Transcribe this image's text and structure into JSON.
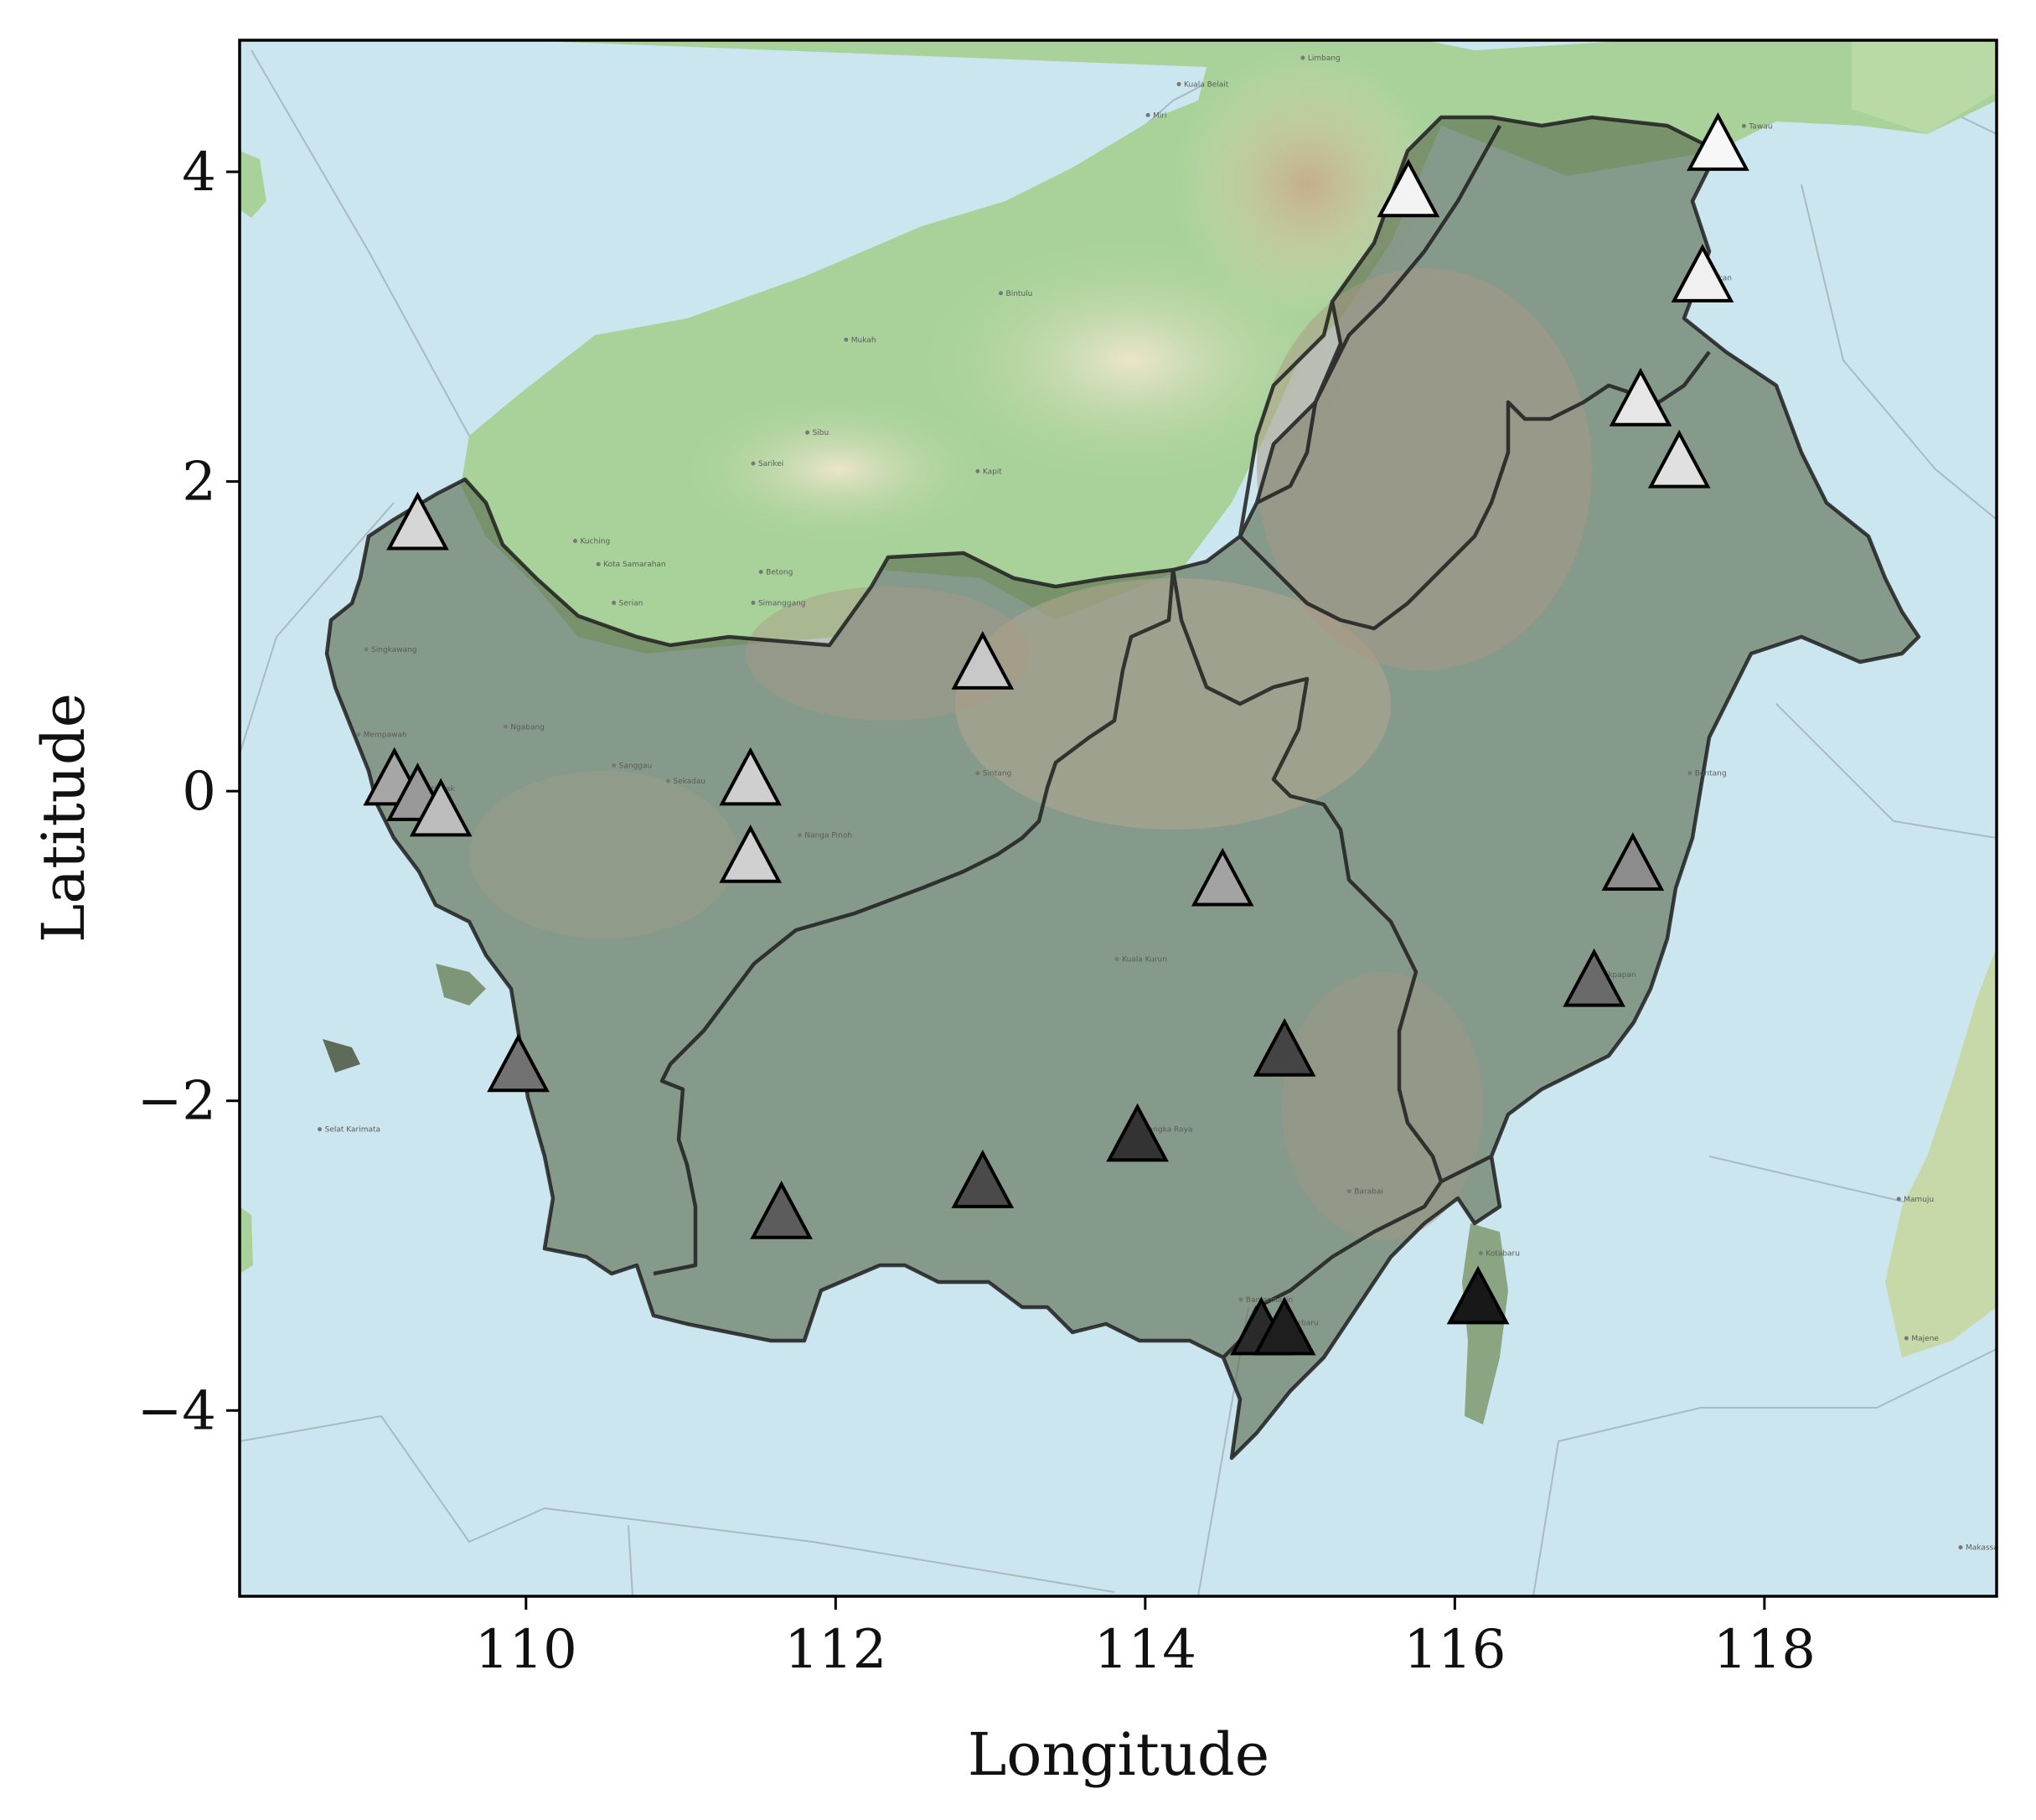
{
  "chart_data": {
    "type": "scatter",
    "title": "",
    "xlabel": "Longitude",
    "ylabel": "Latitude",
    "xlim": [
      108.15,
      119.5
    ],
    "ylim": [
      -5.2,
      4.85
    ],
    "xticks": [
      110,
      112,
      114,
      116,
      118
    ],
    "yticks": [
      4,
      2,
      0,
      -2,
      -4
    ],
    "xtick_labels": [
      "110",
      "112",
      "114",
      "116",
      "118"
    ],
    "ytick_labels": [
      "4",
      "2",
      "0",
      "−2",
      "−4"
    ],
    "grid": false,
    "legend": "none",
    "marker": "triangle",
    "colormap": "grayscale (shade varies by station)",
    "points": [
      {
        "lon": 115.7,
        "lat": 3.85,
        "color": "#f3f3f3"
      },
      {
        "lon": 117.7,
        "lat": 4.15,
        "color": "#f7f7f7"
      },
      {
        "lon": 117.6,
        "lat": 3.3,
        "color": "#f0f0f0"
      },
      {
        "lon": 117.2,
        "lat": 2.5,
        "color": "#e6e6e6"
      },
      {
        "lon": 117.45,
        "lat": 2.1,
        "color": "#e0e0e0"
      },
      {
        "lon": 109.3,
        "lat": 1.7,
        "color": "#d6d6d6"
      },
      {
        "lon": 112.95,
        "lat": 0.8,
        "color": "#c8c8c8"
      },
      {
        "lon": 111.45,
        "lat": 0.05,
        "color": "#cfcfcf"
      },
      {
        "lon": 111.45,
        "lat": -0.45,
        "color": "#d0d0d0"
      },
      {
        "lon": 109.15,
        "lat": 0.05,
        "color": "#a6a6a6"
      },
      {
        "lon": 109.3,
        "lat": -0.05,
        "color": "#999999"
      },
      {
        "lon": 109.45,
        "lat": -0.15,
        "color": "#bdbdbd"
      },
      {
        "lon": 114.5,
        "lat": -0.6,
        "color": "#a3a3a3"
      },
      {
        "lon": 117.15,
        "lat": -0.5,
        "color": "#8c8c8c"
      },
      {
        "lon": 116.9,
        "lat": -1.25,
        "color": "#6a6a6a"
      },
      {
        "lon": 109.95,
        "lat": -1.8,
        "color": "#727272"
      },
      {
        "lon": 114.9,
        "lat": -1.7,
        "color": "#444444"
      },
      {
        "lon": 113.95,
        "lat": -2.25,
        "color": "#333333"
      },
      {
        "lon": 112.95,
        "lat": -2.55,
        "color": "#4a4a4a"
      },
      {
        "lon": 111.65,
        "lat": -2.75,
        "color": "#5c5c5c"
      },
      {
        "lon": 114.75,
        "lat": -3.5,
        "color": "#2a2a2a"
      },
      {
        "lon": 114.9,
        "lat": -3.5,
        "color": "#1e1e1e"
      },
      {
        "lon": 116.15,
        "lat": -3.3,
        "color": "#181818"
      }
    ]
  },
  "map": {
    "colors": {
      "sea": "#cce6ef",
      "land": "#a9d29a",
      "highland": "#e6dcc0",
      "mountain": "#c9a98a",
      "region_overlay": "#5b6a4f",
      "border": "#1f1f1f",
      "frame": "#000000"
    },
    "place_labels": [
      "Limbang",
      "Kuala Belait",
      "Miri",
      "Tawau",
      "Tarakan",
      "Bintulu",
      "Mukah",
      "Sibu",
      "Sarikei",
      "Kapit",
      "Kuching",
      "Kota Samarahan",
      "Serian",
      "Betong",
      "Simanggang",
      "Singkawang",
      "Mempawah",
      "Pontianak",
      "Ngabang",
      "Sanggau",
      "Sekadau",
      "Sintang",
      "Nanga Pinoh",
      "Kuala Kurun",
      "Palangka Raya",
      "Banjarmasin",
      "Banjarbaru",
      "Barabai",
      "Kotabaru",
      "Balikpapan",
      "Bontang",
      "Selat Karimata",
      "Mamuju",
      "Majene",
      "Makassar"
    ]
  }
}
